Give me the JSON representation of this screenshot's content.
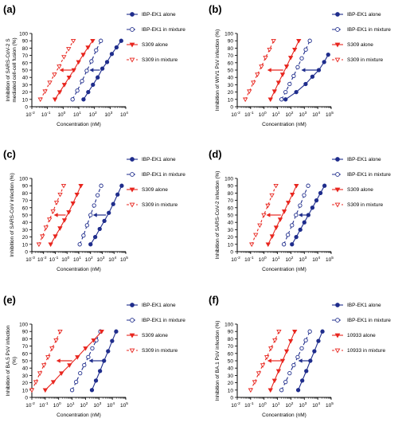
{
  "figure": {
    "description_text": ""
  },
  "chart_data": [
    {
      "panel_label": "(a)",
      "type": "line",
      "xscale": "log",
      "xlim_exp": [
        -2,
        4
      ],
      "x_ticks": [
        "10^-2",
        "10^-1",
        "10^0",
        "10^1",
        "10^2",
        "10^3",
        "10^4"
      ],
      "ylim": [
        0,
        100
      ],
      "y_ticks": [
        "0",
        "10",
        "20",
        "30",
        "40",
        "50",
        "60",
        "70",
        "80",
        "90",
        "100"
      ],
      "xlabel": "Concentration (nM)",
      "ylabel_lines": [
        "Inhibition of SARS-CoV-2 S",
        "mediated cell-cell fusion (%)"
      ],
      "legend": [
        "IBP-EK1 alone",
        "IBP-EK1 in mixture",
        "S309 alone",
        "S309 in mixture"
      ],
      "series": [
        {
          "name": "IBP-EK1 alone",
          "x": [
            20,
            40,
            80,
            160,
            320,
            640,
            1280,
            2560,
            5120
          ],
          "y": [
            10,
            20,
            30,
            40,
            52,
            61,
            72,
            81,
            90
          ]
        },
        {
          "name": "IBP-EK1 in mixture",
          "x": [
            4,
            8,
            16,
            32,
            64,
            128,
            256
          ],
          "y": [
            10,
            22,
            35,
            49,
            62,
            77,
            90
          ]
        },
        {
          "name": "S309 alone",
          "x": [
            0.3,
            0.6,
            1.2,
            2.4,
            4.8,
            9.6,
            19.2,
            38.4,
            76.8
          ],
          "y": [
            10,
            20,
            30,
            40,
            50,
            61,
            71,
            81,
            90
          ]
        },
        {
          "name": "S309 in mixture",
          "x": [
            0.035,
            0.07,
            0.14,
            0.28,
            0.56,
            1.12,
            2.24,
            4.48
          ],
          "y": [
            10,
            21,
            33,
            44,
            55,
            68,
            79,
            90
          ]
        }
      ]
    },
    {
      "panel_label": "(b)",
      "type": "line",
      "xscale": "log",
      "xlim_exp": [
        -2,
        5
      ],
      "x_ticks": [
        "10^-2",
        "10^-1",
        "10^0",
        "10^1",
        "10^2",
        "10^3",
        "10^4",
        "10^5"
      ],
      "ylim": [
        0,
        100
      ],
      "y_ticks": [
        "0",
        "10",
        "20",
        "30",
        "40",
        "50",
        "60",
        "70",
        "80",
        "90",
        "100"
      ],
      "xlabel": "Concentration (nM)",
      "ylabel_lines": [
        "Inhibition of WIV1 PsV infection (%)"
      ],
      "legend": [
        "IBP-EK1 alone",
        "IBP-EK1 in mixture",
        "S309 alone",
        "S309 in mixture"
      ],
      "series": [
        {
          "name": "IBP-EK1 alone",
          "x": [
            40,
            250,
            1250,
            4000,
            12000,
            30000,
            60000
          ],
          "y": [
            10,
            20,
            31,
            41,
            50,
            61,
            71
          ]
        },
        {
          "name": "IBP-EK1 in mixture",
          "x": [
            20,
            40,
            80,
            160,
            320,
            640,
            1280,
            2560
          ],
          "y": [
            10,
            20,
            31,
            42,
            54,
            66,
            78,
            90
          ]
        },
        {
          "name": "S309 alone",
          "x": [
            3,
            6,
            12,
            24,
            48,
            96,
            192,
            384
          ],
          "y": [
            10,
            21,
            33,
            44,
            55,
            67,
            78,
            90
          ]
        },
        {
          "name": "S309 in mixture",
          "x": [
            0.04,
            0.08,
            0.16,
            0.32,
            0.64,
            1.28,
            2.56,
            5.12
          ],
          "y": [
            10,
            21,
            33,
            44,
            55,
            67,
            78,
            90
          ]
        }
      ]
    },
    {
      "panel_label": "(c)",
      "type": "line",
      "xscale": "log",
      "xlim_exp": [
        -3,
        5
      ],
      "x_ticks": [
        "10^-3",
        "10^-2",
        "10^-1",
        "10^0",
        "10^1",
        "10^2",
        "10^3",
        "10^4",
        "10^5"
      ],
      "ylim": [
        0,
        100
      ],
      "y_ticks": [
        "0",
        "10",
        "20",
        "30",
        "40",
        "50",
        "60",
        "70",
        "80",
        "90",
        "100"
      ],
      "xlabel": "Concentration (nM)",
      "ylabel_lines": [
        "Inhibition of SARS-CoV infection (%)"
      ],
      "legend": [
        "IBP-EK1 alone",
        "IBP-EK1 in mixture",
        "S309 alone",
        "S309 in mixture"
      ],
      "series": [
        {
          "name": "IBP-EK1 alone",
          "x": [
            100,
            250,
            600,
            1500,
            3600,
            8500,
            20000,
            45000
          ],
          "y": [
            10,
            20,
            31,
            42,
            53,
            65,
            78,
            90
          ]
        },
        {
          "name": "IBP-EK1 in mixture",
          "x": [
            12,
            25,
            50,
            100,
            200,
            400,
            800
          ],
          "y": [
            10,
            22,
            36,
            50,
            63,
            77,
            90
          ]
        },
        {
          "name": "S309 alone",
          "x": [
            0.04,
            0.1,
            0.25,
            0.6,
            1.4,
            3.2,
            7,
            15
          ],
          "y": [
            10,
            21,
            32,
            43,
            54,
            66,
            78,
            90
          ]
        },
        {
          "name": "S309 in mixture",
          "x": [
            0.004,
            0.008,
            0.016,
            0.032,
            0.064,
            0.128,
            0.256,
            0.512
          ],
          "y": [
            10,
            21,
            33,
            44,
            55,
            67,
            78,
            90
          ]
        }
      ]
    },
    {
      "panel_label": "(d)",
      "type": "line",
      "xscale": "log",
      "xlim_exp": [
        -2,
        5
      ],
      "x_ticks": [
        "10^-2",
        "10^-1",
        "10^0",
        "10^1",
        "10^2",
        "10^3",
        "10^4",
        "10^5"
      ],
      "ylim": [
        0,
        100
      ],
      "y_ticks": [
        "0",
        "10",
        "20",
        "30",
        "40",
        "50",
        "60",
        "70",
        "80",
        "90",
        "100"
      ],
      "xlabel": "Concentration (nM)",
      "ylabel_lines": [
        "Inhibition of SARS-CoV-2 infection (%)"
      ],
      "legend": [
        "IBP-EK1 alone",
        "IBP-EK1 in mixture",
        "S309 alone",
        "S309 in mixture"
      ],
      "series": [
        {
          "name": "IBP-EK1 alone",
          "x": [
            120,
            250,
            500,
            1000,
            2000,
            4000,
            8000,
            16000,
            32000
          ],
          "y": [
            10,
            20,
            30,
            40,
            50,
            60,
            70,
            80,
            90
          ]
        },
        {
          "name": "IBP-EK1 in mixture",
          "x": [
            30,
            60,
            120,
            240,
            480,
            960,
            1920
          ],
          "y": [
            10,
            23,
            36,
            50,
            63,
            77,
            90
          ]
        },
        {
          "name": "S309 alone",
          "x": [
            2,
            4,
            8,
            16,
            32,
            64,
            128,
            256
          ],
          "y": [
            10,
            21,
            33,
            44,
            55,
            67,
            78,
            90
          ]
        },
        {
          "name": "S309 in mixture",
          "x": [
            0.12,
            0.24,
            0.48,
            0.96,
            1.92,
            3.84,
            7.68
          ],
          "y": [
            10,
            23,
            36,
            50,
            63,
            77,
            90
          ]
        }
      ]
    },
    {
      "panel_label": "(e)",
      "type": "line",
      "xscale": "log",
      "xlim_exp": [
        -2,
        5
      ],
      "x_ticks": [
        "10^-2",
        "10^-1",
        "10^0",
        "10^1",
        "10^2",
        "10^3",
        "10^4",
        "10^5"
      ],
      "ylim": [
        0,
        100
      ],
      "y_ticks": [
        "0",
        "10",
        "20",
        "30",
        "40",
        "50",
        "60",
        "70",
        "80",
        "90",
        "100"
      ],
      "xlabel": "Concentration (nM)",
      "ylabel_lines": [
        "Inhibition of BA.5 PsV infection",
        "(%)"
      ],
      "legend": [
        "IBP-EK1 alone",
        "IBP-EK1 in mixture",
        "S309 alone",
        "S309 in mixture"
      ],
      "series": [
        {
          "name": "IBP-EK1 alone",
          "x": [
            300,
            600,
            1200,
            2400,
            4800,
            9600,
            19200
          ],
          "y": [
            10,
            23,
            36,
            50,
            63,
            77,
            90
          ]
        },
        {
          "name": "IBP-EK1 in mixture",
          "x": [
            10,
            20,
            40,
            80,
            160,
            320,
            640,
            1280
          ],
          "y": [
            10,
            21,
            33,
            44,
            55,
            67,
            78,
            90
          ]
        },
        {
          "name": "S309 alone",
          "x": [
            0.1,
            0.4,
            1.6,
            6.4,
            25,
            100,
            400,
            1600
          ],
          "y": [
            10,
            21,
            33,
            44,
            55,
            67,
            78,
            90
          ]
        },
        {
          "name": "S309 in mixture",
          "x": [
            0.01,
            0.02,
            0.04,
            0.08,
            0.16,
            0.32,
            0.64,
            1.28
          ],
          "y": [
            10,
            21,
            33,
            44,
            55,
            67,
            78,
            90
          ]
        }
      ]
    },
    {
      "panel_label": "(f)",
      "type": "line",
      "xscale": "log",
      "xlim_exp": [
        -2,
        5
      ],
      "x_ticks": [
        "10^-2",
        "10^-1",
        "10^0",
        "10^1",
        "10^2",
        "10^3",
        "10^4",
        "10^5"
      ],
      "ylim": [
        0,
        100
      ],
      "y_ticks": [
        "0",
        "10",
        "20",
        "30",
        "40",
        "50",
        "60",
        "70",
        "80",
        "90",
        "100"
      ],
      "xlabel": "Concentration (nM)",
      "ylabel_lines": [
        "Inhibition of BA.1 PsV infection (%)"
      ],
      "legend": [
        "IBP-EK1 alone",
        "IBP-EK1 in mixture",
        "10933 alone",
        "10933 in mixture"
      ],
      "series": [
        {
          "name": "IBP-EK1 alone",
          "x": [
            350,
            700,
            1400,
            2800,
            5600,
            11200,
            22400
          ],
          "y": [
            10,
            23,
            36,
            50,
            63,
            77,
            90
          ]
        },
        {
          "name": "IBP-EK1 in mixture",
          "x": [
            20,
            40,
            80,
            160,
            320,
            640,
            1280,
            2560
          ],
          "y": [
            10,
            21,
            33,
            44,
            55,
            67,
            78,
            90
          ]
        },
        {
          "name": "10933 alone",
          "x": [
            3,
            6,
            12,
            24,
            48,
            96,
            192
          ],
          "y": [
            10,
            23,
            36,
            50,
            63,
            77,
            90
          ]
        },
        {
          "name": "10933 in mixture",
          "x": [
            0.1,
            0.2,
            0.4,
            0.8,
            1.6,
            3.2,
            6.4,
            12.8
          ],
          "y": [
            10,
            21,
            33,
            44,
            55,
            67,
            78,
            90
          ]
        }
      ]
    }
  ],
  "colors": {
    "blue": "#1f2d8c",
    "red": "#e8261f",
    "axis": "#000000"
  },
  "series_styles": [
    {
      "color_key": "blue",
      "marker": "circle-filled",
      "dash": "none"
    },
    {
      "color_key": "blue",
      "marker": "circle-open",
      "dash": "4,3"
    },
    {
      "color_key": "red",
      "marker": "triangle-down-filled",
      "dash": "none"
    },
    {
      "color_key": "red",
      "marker": "triangle-down-open",
      "dash": "3,3"
    }
  ]
}
